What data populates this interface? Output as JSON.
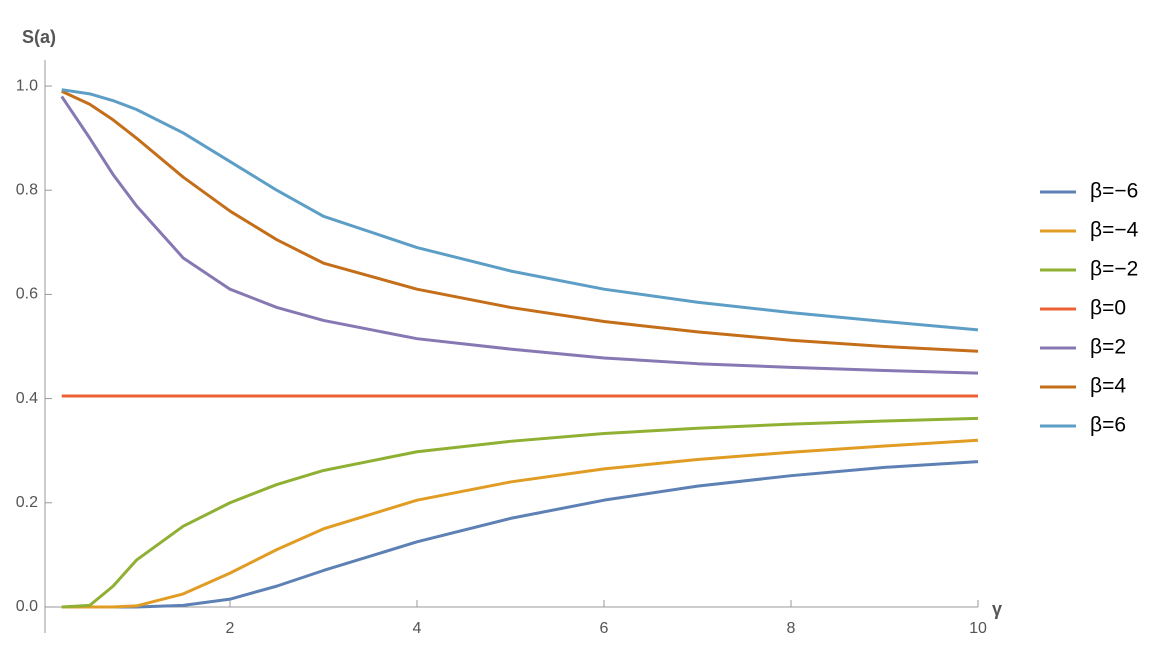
{
  "chart_data": {
    "type": "line",
    "y_label": "S(a)",
    "x_label": "γ",
    "x": [
      0.2,
      0.5,
      0.75,
      1,
      1.5,
      2,
      2.5,
      3,
      4,
      5,
      6,
      7,
      8,
      9,
      10
    ],
    "series": [
      {
        "name": "β=−6",
        "color": "#5e81b5",
        "values": [
          0,
          0,
          0,
          0,
          0.003,
          0.015,
          0.04,
          0.07,
          0.125,
          0.17,
          0.205,
          0.232,
          0.252,
          0.268,
          0.279
        ]
      },
      {
        "name": "β=−4",
        "color": "#e19c24",
        "values": [
          0,
          0,
          0,
          0.002,
          0.025,
          0.065,
          0.11,
          0.15,
          0.205,
          0.24,
          0.265,
          0.283,
          0.297,
          0.309,
          0.32
        ]
      },
      {
        "name": "β=−2",
        "color": "#8fb032",
        "values": [
          0,
          0.003,
          0.04,
          0.09,
          0.155,
          0.2,
          0.235,
          0.262,
          0.298,
          0.318,
          0.333,
          0.343,
          0.351,
          0.357,
          0.362
        ]
      },
      {
        "name": "β=0",
        "color": "#eb6235",
        "values": [
          0.405,
          0.405,
          0.405,
          0.405,
          0.405,
          0.405,
          0.405,
          0.405,
          0.405,
          0.405,
          0.405,
          0.405,
          0.405,
          0.405,
          0.405
        ]
      },
      {
        "name": "β=2",
        "color": "#8778b3",
        "values": [
          0.98,
          0.9,
          0.83,
          0.77,
          0.67,
          0.61,
          0.575,
          0.55,
          0.515,
          0.495,
          0.478,
          0.467,
          0.46,
          0.454,
          0.449
        ]
      },
      {
        "name": "β=4",
        "color": "#c56e1a",
        "values": [
          0.99,
          0.965,
          0.935,
          0.9,
          0.825,
          0.76,
          0.705,
          0.66,
          0.61,
          0.575,
          0.548,
          0.528,
          0.512,
          0.5,
          0.491
        ]
      },
      {
        "name": "β=6",
        "color": "#5d9ec7",
        "values": [
          0.993,
          0.985,
          0.972,
          0.955,
          0.91,
          0.855,
          0.8,
          0.75,
          0.69,
          0.645,
          0.61,
          0.585,
          0.565,
          0.548,
          0.532
        ]
      }
    ],
    "xlim": [
      0,
      10
    ],
    "ylim": [
      -0.05,
      1.05
    ],
    "xticks": [
      2,
      4,
      6,
      8,
      10
    ],
    "yticks": [
      {
        "value": 0,
        "label": "0.0"
      },
      0.2,
      0.4,
      0.6,
      0.8,
      {
        "value": 1,
        "label": "1.0"
      }
    ],
    "legend": "right"
  }
}
